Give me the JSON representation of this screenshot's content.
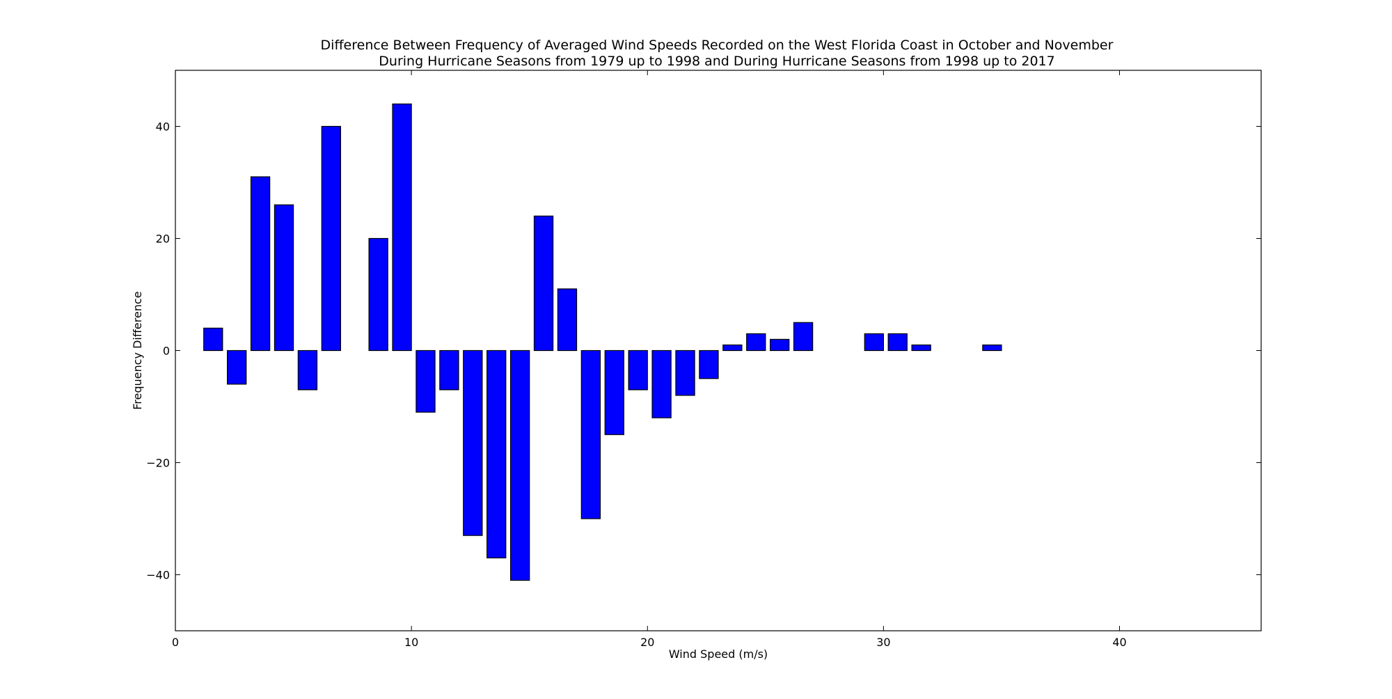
{
  "chart_data": {
    "type": "bar",
    "title": [
      "Difference Between Frequency of Averaged Wind Speeds Recorded on the West Florida Coast in October and November",
      "During Hurricane Seasons from 1979 up to 1998 and During Hurricane Seasons from 1998 up to 2017"
    ],
    "xlabel": "Wind Speed (m/s)",
    "ylabel": "Frequency Difference",
    "xlim": [
      0,
      46
    ],
    "ylim": [
      -50,
      50
    ],
    "xticks": [
      0,
      10,
      20,
      30,
      40
    ],
    "yticks": [
      -40,
      -20,
      0,
      20,
      40
    ],
    "ytick_labels": [
      "−40",
      "−20",
      "0",
      "20",
      "40"
    ],
    "bar_width": 0.8,
    "grid": false,
    "colors": {
      "bar": "#0000ff",
      "edge": "#000000"
    },
    "x": [
      0,
      1,
      2,
      3,
      4,
      5,
      6,
      7,
      8,
      9,
      10,
      11,
      12,
      13,
      14,
      15,
      16,
      17,
      18,
      19,
      20,
      21,
      22,
      23,
      24,
      25,
      26,
      27,
      28,
      29,
      30,
      31,
      32,
      33,
      34,
      35,
      36,
      37,
      38,
      39,
      40,
      41,
      42,
      43,
      44
    ],
    "values": [
      0,
      4,
      -6,
      31,
      26,
      -7,
      40,
      0,
      20,
      44,
      -11,
      -7,
      -33,
      -37,
      -41,
      24,
      11,
      -30,
      -15,
      -7,
      -12,
      -8,
      -5,
      1,
      3,
      2,
      5,
      0,
      0,
      3,
      3,
      1,
      0,
      0,
      1,
      0,
      0,
      0,
      0,
      0,
      0,
      0,
      0,
      0,
      0
    ]
  }
}
